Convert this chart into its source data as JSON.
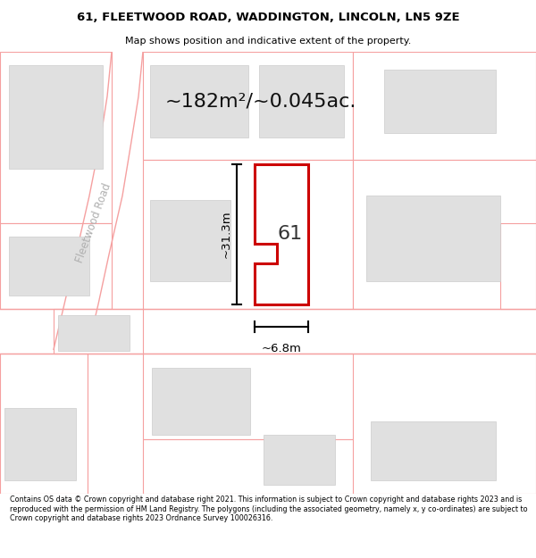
{
  "title_line1": "61, FLEETWOOD ROAD, WADDINGTON, LINCOLN, LN5 9ZE",
  "title_line2": "Map shows position and indicative extent of the property.",
  "footer": "Contains OS data © Crown copyright and database right 2021. This information is subject to Crown copyright and database rights 2023 and is reproduced with the permission of HM Land Registry. The polygons (including the associated geometry, namely x, y co-ordinates) are subject to Crown copyright and database rights 2023 Ordnance Survey 100026316.",
  "area_text": "~182m²/~0.045ac.",
  "dim_vertical": "~31.3m",
  "dim_horizontal": "~6.8m",
  "label_61": "61",
  "road_label": "Fleetwood Road",
  "bg_color": "#ffffff",
  "map_bg": "#f7f7f7",
  "plot_color": "#f5a0a0",
  "building_fill": "#e0e0e0",
  "highlight_outline": "#cc0000",
  "dim_color": "#111111",
  "text_color": "#222222",
  "road_label_color": "#c0c0c0"
}
